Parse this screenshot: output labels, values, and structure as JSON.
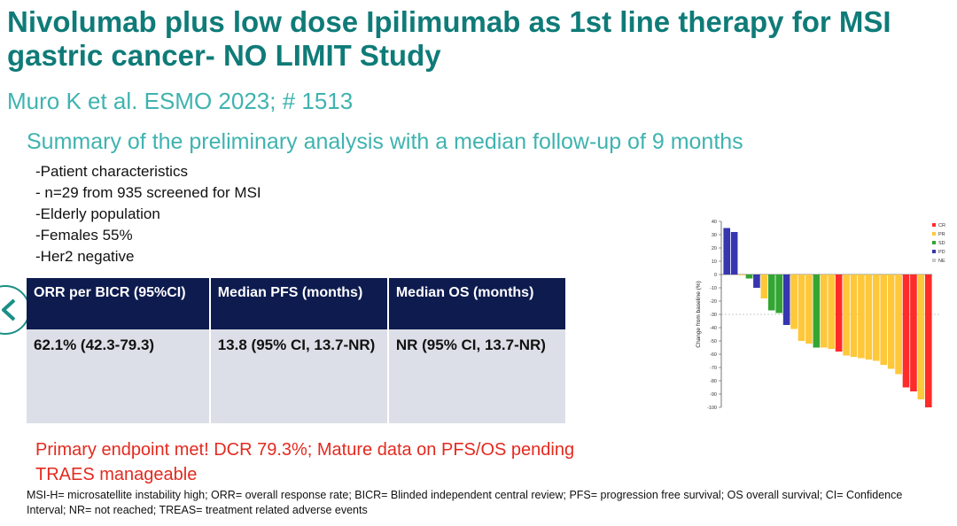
{
  "slide": {
    "title": "Nivolumab plus low dose Ipilimumab as 1st line therapy for MSI gastric cancer- NO LIMIT Study",
    "citation": "Muro K et al. ESMO 2023; # 1513",
    "subtitle": "Summary  of the preliminary analysis with a median follow-up of 9 months",
    "bullets": [
      "-Patient characteristics",
      "- n=29 from 935 screened for MSI",
      "-Elderly population",
      "-Females 55%",
      "-Her2 negative"
    ],
    "table": {
      "headers": [
        "ORR per BICR (95%CI)",
        "Median PFS (months)",
        "Median OS (months)"
      ],
      "cells": [
        "62.1% (42.3-79.3)",
        "13.8 (95% CI, 13.7-NR)",
        "NR (95% CI, 13.7-NR)"
      ]
    },
    "highlight_line1": "Primary endpoint met! DCR  79.3%;  Mature data on PFS/OS pending",
    "highlight_line2": "TRAES manageable",
    "footnote": "MSI-H= microsatellite instability high; ORR= overall response rate; BICR= Blinded independent central review; PFS= progression free survival; OS overall survival; CI= Confidence Interval;  NR= not reached; TREAS= treatment related adverse events",
    "nav_icon": "chevron-left-icon"
  },
  "colors": {
    "title": "#0f7b78",
    "accent": "#3fb3b0",
    "table_header": "#0d1b4f",
    "table_body": "#dcdfe7",
    "highlight": "#e32a1f"
  },
  "chart_data": {
    "type": "bar",
    "ylabel": "Change from baseline (%)",
    "ylim": [
      -100,
      40
    ],
    "ytick_step": 10,
    "reference_line": -30,
    "legend": [
      {
        "label": "CR",
        "color": "#ff2a2a"
      },
      {
        "label": "PR",
        "color": "#ffc83a"
      },
      {
        "label": "SD",
        "color": "#33a532"
      },
      {
        "label": "PD",
        "color": "#3636b0"
      },
      {
        "label": "NE",
        "color": "#c8c8c8"
      }
    ],
    "legend_position": "top-right",
    "bars": [
      {
        "value": 35,
        "response": "PD"
      },
      {
        "value": 32,
        "response": "PD"
      },
      {
        "value": 0,
        "response": "PR"
      },
      {
        "value": -3,
        "response": "SD"
      },
      {
        "value": -10,
        "response": "PD"
      },
      {
        "value": -18,
        "response": "PR"
      },
      {
        "value": -27,
        "response": "SD"
      },
      {
        "value": -29,
        "response": "SD"
      },
      {
        "value": -38,
        "response": "PD"
      },
      {
        "value": -41,
        "response": "PR"
      },
      {
        "value": -50,
        "response": "PR"
      },
      {
        "value": -52,
        "response": "PR"
      },
      {
        "value": -55,
        "response": "SD"
      },
      {
        "value": -55,
        "response": "PR"
      },
      {
        "value": -56,
        "response": "PR"
      },
      {
        "value": -58,
        "response": "CR"
      },
      {
        "value": -61,
        "response": "PR"
      },
      {
        "value": -62,
        "response": "PR"
      },
      {
        "value": -63,
        "response": "PR"
      },
      {
        "value": -64,
        "response": "PR"
      },
      {
        "value": -65,
        "response": "PR"
      },
      {
        "value": -68,
        "response": "PR"
      },
      {
        "value": -71,
        "response": "PR"
      },
      {
        "value": -75,
        "response": "PR"
      },
      {
        "value": -85,
        "response": "CR"
      },
      {
        "value": -88,
        "response": "CR"
      },
      {
        "value": -94,
        "response": "PR"
      },
      {
        "value": -100,
        "response": "CR"
      }
    ]
  }
}
